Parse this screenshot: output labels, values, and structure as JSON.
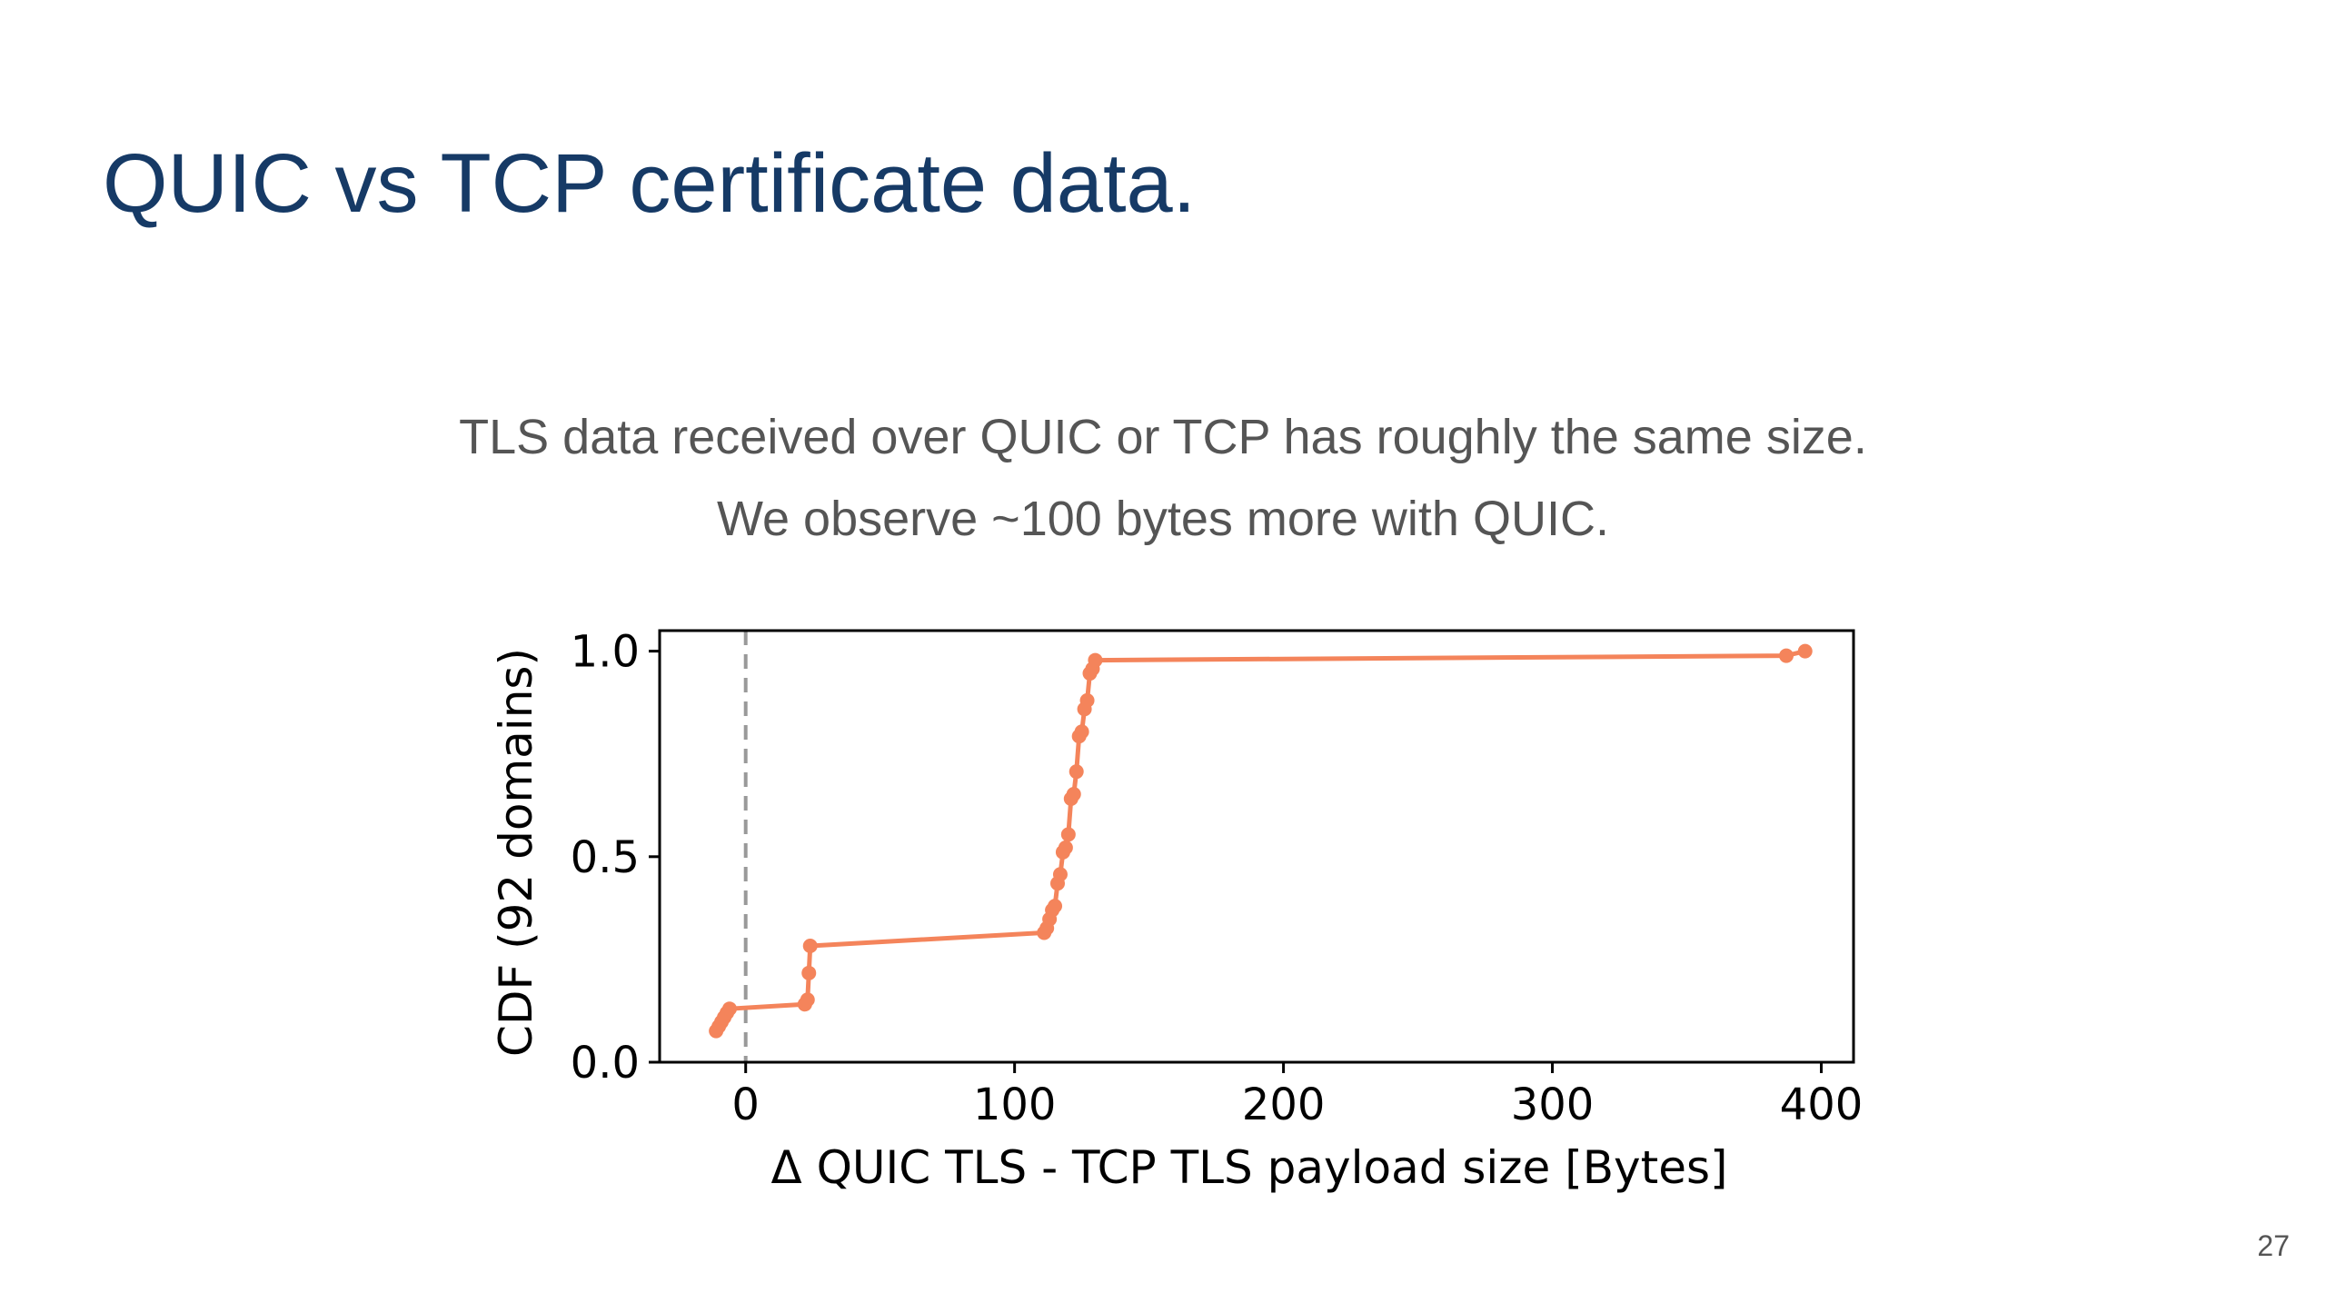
{
  "slide": {
    "title": "QUIC vs TCP certificate data.",
    "subtitle_line1": "TLS data received over QUIC or TCP has roughly the same size.",
    "subtitle_line2": "We observe ~100 bytes more with QUIC.",
    "page_number": "27"
  },
  "chart_data": {
    "type": "line",
    "xlabel": "Δ QUIC TLS - TCP TLS payload size [Bytes]",
    "ylabel": "CDF (92 domains)",
    "xlim": [
      -32,
      412
    ],
    "ylim": [
      0.0,
      1.05
    ],
    "x_ticks": [
      0,
      100,
      200,
      300,
      400
    ],
    "x_tick_labels": [
      "0",
      "100",
      "200",
      "300",
      "400"
    ],
    "y_ticks": [
      0.0,
      0.5,
      1.0
    ],
    "y_tick_labels": [
      "0.0",
      "0.5",
      "1.0"
    ],
    "grid": false,
    "reference_line": {
      "x": 0,
      "style": "dashed",
      "color": "#999999"
    },
    "series": [
      {
        "color": "#f4845b",
        "points": [
          [
            -11,
            0.076
          ],
          [
            -10,
            0.087
          ],
          [
            -9,
            0.098
          ],
          [
            -8,
            0.109
          ],
          [
            -7,
            0.12
          ],
          [
            -6,
            0.13
          ],
          [
            22,
            0.141
          ],
          [
            23,
            0.152
          ],
          [
            23.5,
            0.217
          ],
          [
            24,
            0.283
          ],
          [
            111,
            0.315
          ],
          [
            112,
            0.326
          ],
          [
            113,
            0.348
          ],
          [
            114,
            0.37
          ],
          [
            115,
            0.38
          ],
          [
            116,
            0.435
          ],
          [
            117,
            0.457
          ],
          [
            118,
            0.511
          ],
          [
            119,
            0.522
          ],
          [
            120,
            0.554
          ],
          [
            121,
            0.641
          ],
          [
            122,
            0.652
          ],
          [
            123,
            0.707
          ],
          [
            124,
            0.793
          ],
          [
            125,
            0.804
          ],
          [
            126,
            0.859
          ],
          [
            127,
            0.88
          ],
          [
            128,
            0.946
          ],
          [
            129,
            0.957
          ],
          [
            130,
            0.978
          ],
          [
            387,
            0.989
          ],
          [
            394,
            1.0
          ]
        ]
      }
    ]
  }
}
